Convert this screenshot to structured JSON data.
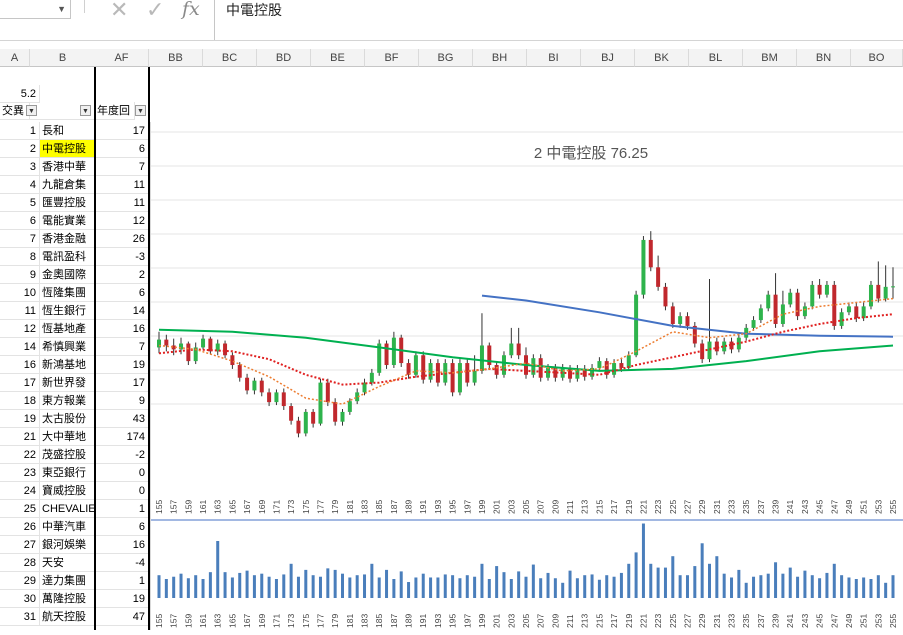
{
  "formula_bar": {
    "name_box": "",
    "formula": "中電控股",
    "fx_label": "fx"
  },
  "columns": [
    "A",
    "B",
    "AF",
    "BB",
    "BC",
    "BD",
    "BE",
    "BF",
    "BG",
    "BH",
    "BI",
    "BJ",
    "BK",
    "BL",
    "BM",
    "BN",
    "BO"
  ],
  "header_rows": {
    "a_value": "5.2",
    "a_label": "交異",
    "af_label": "年度回"
  },
  "rows": [
    {
      "n": "1",
      "name": "長和",
      "val": "17"
    },
    {
      "n": "2",
      "name": "中電控股",
      "val": "6",
      "hl": true
    },
    {
      "n": "3",
      "name": "香港中華",
      "val": "7"
    },
    {
      "n": "4",
      "name": "九龍倉集",
      "val": "11"
    },
    {
      "n": "5",
      "name": "匯豐控股",
      "val": "11"
    },
    {
      "n": "6",
      "name": "電能實業",
      "val": "12"
    },
    {
      "n": "7",
      "name": "香港金融",
      "val": "26"
    },
    {
      "n": "8",
      "name": "電訊盈科",
      "val": "-3"
    },
    {
      "n": "9",
      "name": "金奧國際",
      "val": "2"
    },
    {
      "n": "10",
      "name": "恆隆集團",
      "val": "6"
    },
    {
      "n": "11",
      "name": "恆生銀行",
      "val": "14"
    },
    {
      "n": "12",
      "name": "恆基地產",
      "val": "16"
    },
    {
      "n": "14",
      "name": "希慎興業",
      "val": "7"
    },
    {
      "n": "16",
      "name": "新鴻基地",
      "val": "19"
    },
    {
      "n": "17",
      "name": "新世界發",
      "val": "17"
    },
    {
      "n": "18",
      "name": "東方報業",
      "val": "9"
    },
    {
      "n": "19",
      "name": "太古股份",
      "val": "43"
    },
    {
      "n": "21",
      "name": "大中華地",
      "val": "174"
    },
    {
      "n": "22",
      "name": "茂盛控股",
      "val": "-2"
    },
    {
      "n": "23",
      "name": "東亞銀行",
      "val": "0"
    },
    {
      "n": "24",
      "name": "寶威控股",
      "val": "0"
    },
    {
      "n": "25",
      "name": "CHEVALIE",
      "val": "1"
    },
    {
      "n": "26",
      "name": "中華汽車",
      "val": "6"
    },
    {
      "n": "27",
      "name": "銀河娛樂",
      "val": "16"
    },
    {
      "n": "28",
      "name": "天安",
      "val": "-4"
    },
    {
      "n": "29",
      "name": "達力集團",
      "val": "1"
    },
    {
      "n": "30",
      "name": "萬隆控股",
      "val": "19"
    },
    {
      "n": "31",
      "name": "航天控股",
      "val": "47"
    }
  ],
  "chart_data": {
    "type": "candlestick",
    "title": "2 中電控股  76.25",
    "x_ticks": [
      "155",
      "157",
      "159",
      "161",
      "163",
      "165",
      "167",
      "169",
      "171",
      "173",
      "175",
      "177",
      "179",
      "181",
      "183",
      "185",
      "187",
      "189",
      "191",
      "193",
      "195",
      "197",
      "199",
      "201",
      "203",
      "205",
      "207",
      "209",
      "211",
      "213",
      "215",
      "217",
      "219",
      "221",
      "223",
      "225",
      "227",
      "229",
      "231",
      "233",
      "235",
      "237",
      "239",
      "241",
      "243",
      "245",
      "247",
      "249",
      "251",
      "253",
      "255"
    ],
    "x_range": [
      155,
      255
    ],
    "price_range": [
      55,
      90
    ],
    "volume_range": [
      0,
      100
    ],
    "colors": {
      "up": "#2eb34c",
      "down": "#c0282d",
      "ma_long": "#00b050",
      "ma_mid": "#4472c4",
      "ma_short_red": "#e02020",
      "ma_short_orange": "#ed7d31",
      "volume": "#4a7ebb"
    },
    "candles": [
      [
        155,
        70,
        70.8,
        71.6,
        69.4
      ],
      [
        156,
        70.8,
        70.2,
        71.3,
        69.6
      ],
      [
        157,
        70.2,
        69.8,
        70.9,
        69.2
      ],
      [
        158,
        69.8,
        70.4,
        71.0,
        69.3
      ],
      [
        159,
        70.4,
        68.6,
        70.6,
        68.2
      ],
      [
        160,
        68.6,
        70.0,
        70.5,
        68.3
      ],
      [
        161,
        70.0,
        70.9,
        71.3,
        69.8
      ],
      [
        162,
        70.9,
        69.6,
        71.1,
        69.3
      ],
      [
        163,
        69.6,
        70.4,
        70.8,
        69.2
      ],
      [
        164,
        70.4,
        69.2,
        70.7,
        68.9
      ],
      [
        165,
        69.2,
        68.2,
        69.5,
        67.8
      ],
      [
        166,
        68.2,
        66.9,
        68.5,
        66.5
      ],
      [
        167,
        66.9,
        65.6,
        67.3,
        65.2
      ],
      [
        168,
        65.6,
        66.6,
        66.9,
        65.2
      ],
      [
        169,
        66.6,
        65.4,
        66.9,
        65.0
      ],
      [
        170,
        65.4,
        64.4,
        65.8,
        64.0
      ],
      [
        171,
        64.4,
        65.4,
        65.7,
        64.1
      ],
      [
        172,
        65.4,
        64.0,
        65.8,
        63.6
      ],
      [
        173,
        64.0,
        62.5,
        64.3,
        62.1
      ],
      [
        174,
        62.5,
        61.2,
        62.9,
        60.8
      ],
      [
        175,
        61.2,
        63.4,
        63.7,
        60.9
      ],
      [
        176,
        63.4,
        62.2,
        63.7,
        61.8
      ],
      [
        177,
        62.2,
        66.4,
        66.8,
        62.0
      ],
      [
        178,
        66.4,
        64.4,
        66.8,
        64.0
      ],
      [
        179,
        64.4,
        62.4,
        64.8,
        62.0
      ],
      [
        180,
        62.4,
        63.4,
        63.7,
        62.0
      ],
      [
        181,
        63.4,
        64.5,
        64.8,
        63.1
      ],
      [
        182,
        64.5,
        65.4,
        65.8,
        64.2
      ],
      [
        183,
        65.4,
        66.4,
        66.8,
        65.1
      ],
      [
        184,
        66.4,
        67.4,
        67.8,
        66.1
      ],
      [
        185,
        67.4,
        70.4,
        70.8,
        67.1
      ],
      [
        186,
        70.4,
        68.2,
        70.7,
        67.8
      ],
      [
        187,
        68.2,
        71.0,
        71.6,
        67.9
      ],
      [
        188,
        71.0,
        68.4,
        71.3,
        68.0
      ],
      [
        189,
        68.4,
        67.2,
        68.8,
        66.8
      ],
      [
        190,
        67.2,
        69.2,
        69.6,
        66.9
      ],
      [
        191,
        69.2,
        66.7,
        69.6,
        66.3
      ],
      [
        192,
        66.7,
        68.4,
        68.8,
        66.4
      ],
      [
        193,
        68.4,
        66.4,
        68.8,
        66.0
      ],
      [
        194,
        66.4,
        68.4,
        68.8,
        66.1
      ],
      [
        195,
        68.4,
        65.4,
        68.8,
        65.0
      ],
      [
        196,
        65.4,
        68.4,
        68.8,
        65.1
      ],
      [
        197,
        68.4,
        66.4,
        68.8,
        66.0
      ],
      [
        198,
        66.4,
        67.6,
        69.2,
        66.1
      ],
      [
        199,
        67.6,
        70.2,
        73.5,
        67.3
      ],
      [
        200,
        70.2,
        68.2,
        70.5,
        67.8
      ],
      [
        201,
        68.2,
        67.2,
        68.6,
        66.8
      ],
      [
        202,
        67.2,
        69.2,
        69.6,
        66.9
      ],
      [
        203,
        69.2,
        70.4,
        72.0,
        68.9
      ],
      [
        204,
        70.4,
        69.2,
        72.0,
        68.8
      ],
      [
        205,
        69.2,
        67.2,
        70.0,
        66.8
      ],
      [
        206,
        67.2,
        68.9,
        69.3,
        66.9
      ],
      [
        207,
        68.9,
        66.9,
        69.3,
        66.5
      ],
      [
        208,
        66.9,
        67.9,
        68.3,
        66.6
      ],
      [
        209,
        67.9,
        66.9,
        68.3,
        66.5
      ],
      [
        210,
        66.9,
        67.9,
        68.3,
        66.6
      ],
      [
        211,
        67.9,
        66.8,
        68.2,
        66.4
      ],
      [
        212,
        66.8,
        67.8,
        68.2,
        66.5
      ],
      [
        213,
        67.8,
        67.0,
        68.2,
        66.6
      ],
      [
        214,
        67.0,
        67.9,
        68.3,
        66.7
      ],
      [
        215,
        67.9,
        68.6,
        69.0,
        67.6
      ],
      [
        216,
        68.6,
        67.2,
        68.9,
        66.8
      ],
      [
        217,
        67.2,
        68.4,
        68.8,
        66.9
      ],
      [
        218,
        68.4,
        67.9,
        68.8,
        67.5
      ],
      [
        219,
        67.9,
        69.2,
        69.6,
        67.6
      ],
      [
        220,
        69.2,
        75.4,
        75.8,
        69.0
      ],
      [
        221,
        75.4,
        81.0,
        81.4,
        75.0
      ],
      [
        222,
        81.0,
        78.2,
        81.9,
        77.8
      ],
      [
        223,
        78.2,
        76.2,
        79.4,
        75.8
      ],
      [
        224,
        76.2,
        74.2,
        76.6,
        73.8
      ],
      [
        225,
        74.2,
        72.4,
        74.6,
        72.0
      ],
      [
        226,
        72.4,
        73.2,
        73.6,
        72.0
      ],
      [
        227,
        73.2,
        72.2,
        73.6,
        71.8
      ],
      [
        228,
        72.2,
        70.4,
        72.6,
        70.0
      ],
      [
        229,
        70.4,
        68.8,
        70.8,
        68.4
      ],
      [
        230,
        68.8,
        70.6,
        77.0,
        68.5
      ],
      [
        231,
        70.6,
        69.6,
        71.0,
        69.2
      ],
      [
        232,
        69.6,
        70.6,
        71.0,
        69.3
      ],
      [
        233,
        70.6,
        69.8,
        71.0,
        69.4
      ],
      [
        234,
        69.8,
        71.0,
        71.4,
        69.5
      ],
      [
        235,
        71.0,
        72.0,
        72.4,
        70.7
      ],
      [
        236,
        72.0,
        72.8,
        73.2,
        71.7
      ],
      [
        237,
        72.8,
        74.0,
        74.4,
        72.5
      ],
      [
        238,
        74.0,
        75.4,
        75.8,
        73.7
      ],
      [
        239,
        75.4,
        72.4,
        77.6,
        72.0
      ],
      [
        240,
        72.4,
        74.4,
        75.8,
        72.1
      ],
      [
        241,
        74.4,
        75.6,
        76.0,
        74.1
      ],
      [
        242,
        75.6,
        73.2,
        76.0,
        72.8
      ],
      [
        243,
        73.2,
        74.2,
        74.6,
        72.9
      ],
      [
        244,
        74.2,
        76.4,
        76.8,
        73.9
      ],
      [
        245,
        76.4,
        75.4,
        77.0,
        75.0
      ],
      [
        246,
        75.4,
        76.4,
        76.8,
        75.1
      ],
      [
        247,
        76.4,
        72.2,
        76.8,
        71.8
      ],
      [
        248,
        72.2,
        73.6,
        74.0,
        71.9
      ],
      [
        249,
        73.6,
        74.2,
        74.6,
        73.3
      ],
      [
        250,
        74.2,
        73.0,
        74.6,
        72.6
      ],
      [
        251,
        73.0,
        74.2,
        74.6,
        72.7
      ],
      [
        252,
        74.2,
        76.4,
        76.8,
        73.9
      ],
      [
        253,
        76.4,
        75.0,
        78.8,
        74.6
      ],
      [
        254,
        75.0,
        76.2,
        78.4,
        74.7
      ],
      [
        255,
        76.2,
        76.25,
        78.2,
        75.0
      ]
    ],
    "ma_long_green": [
      [
        155,
        71.8
      ],
      [
        165,
        71.6
      ],
      [
        175,
        71.0
      ],
      [
        185,
        70.0
      ],
      [
        195,
        69.0
      ],
      [
        205,
        68.2
      ],
      [
        215,
        67.6
      ],
      [
        225,
        67.8
      ],
      [
        235,
        68.6
      ],
      [
        245,
        69.6
      ],
      [
        255,
        70.2
      ]
    ],
    "ma_mid_blue": [
      [
        199,
        75.3
      ],
      [
        205,
        74.8
      ],
      [
        215,
        73.6
      ],
      [
        225,
        72.2
      ],
      [
        235,
        71.4
      ],
      [
        245,
        71.2
      ],
      [
        255,
        71.1
      ]
    ],
    "ma_short_red": [
      [
        155,
        69.4
      ],
      [
        160,
        69.8
      ],
      [
        165,
        69.6
      ],
      [
        170,
        68.8
      ],
      [
        175,
        67.2
      ],
      [
        180,
        66.2
      ],
      [
        185,
        66.4
      ],
      [
        190,
        67.0
      ],
      [
        195,
        67.4
      ],
      [
        200,
        67.8
      ],
      [
        205,
        67.6
      ],
      [
        210,
        67.4
      ],
      [
        215,
        67.2
      ],
      [
        220,
        68.2
      ],
      [
        225,
        69.0
      ],
      [
        230,
        69.8
      ],
      [
        235,
        70.6
      ],
      [
        240,
        71.6
      ],
      [
        245,
        72.4
      ],
      [
        250,
        73.0
      ],
      [
        255,
        73.4
      ]
    ],
    "ma_short_orange": [
      [
        155,
        70.2
      ],
      [
        160,
        69.8
      ],
      [
        165,
        68.6
      ],
      [
        170,
        67.0
      ],
      [
        175,
        64.8
      ],
      [
        180,
        64.2
      ],
      [
        185,
        66.0
      ],
      [
        190,
        67.6
      ],
      [
        195,
        67.4
      ],
      [
        200,
        67.8
      ],
      [
        205,
        68.4
      ],
      [
        210,
        67.6
      ],
      [
        215,
        67.8
      ],
      [
        220,
        69.6
      ],
      [
        225,
        71.6
      ],
      [
        230,
        71.0
      ],
      [
        235,
        71.4
      ],
      [
        240,
        73.4
      ],
      [
        245,
        74.2
      ],
      [
        250,
        74.6
      ],
      [
        255,
        75.0
      ]
    ],
    "volume": [
      [
        155,
        30
      ],
      [
        156,
        25
      ],
      [
        157,
        28
      ],
      [
        158,
        32
      ],
      [
        159,
        26
      ],
      [
        160,
        30
      ],
      [
        161,
        25
      ],
      [
        162,
        34
      ],
      [
        163,
        75
      ],
      [
        164,
        34
      ],
      [
        165,
        27
      ],
      [
        166,
        33
      ],
      [
        167,
        36
      ],
      [
        168,
        30
      ],
      [
        169,
        32
      ],
      [
        170,
        28
      ],
      [
        171,
        25
      ],
      [
        172,
        31
      ],
      [
        173,
        45
      ],
      [
        174,
        28
      ],
      [
        175,
        37
      ],
      [
        176,
        30
      ],
      [
        177,
        28
      ],
      [
        178,
        39
      ],
      [
        179,
        37
      ],
      [
        180,
        32
      ],
      [
        181,
        27
      ],
      [
        182,
        30
      ],
      [
        183,
        31
      ],
      [
        184,
        45
      ],
      [
        185,
        27
      ],
      [
        186,
        37
      ],
      [
        187,
        25
      ],
      [
        188,
        35
      ],
      [
        189,
        21
      ],
      [
        190,
        27
      ],
      [
        191,
        32
      ],
      [
        192,
        27
      ],
      [
        193,
        27
      ],
      [
        194,
        31
      ],
      [
        195,
        30
      ],
      [
        196,
        26
      ],
      [
        197,
        30
      ],
      [
        198,
        28
      ],
      [
        199,
        45
      ],
      [
        200,
        25
      ],
      [
        201,
        42
      ],
      [
        202,
        34
      ],
      [
        203,
        25
      ],
      [
        204,
        35
      ],
      [
        205,
        28
      ],
      [
        206,
        44
      ],
      [
        207,
        26
      ],
      [
        208,
        33
      ],
      [
        209,
        26
      ],
      [
        210,
        20
      ],
      [
        211,
        36
      ],
      [
        212,
        26
      ],
      [
        213,
        30
      ],
      [
        214,
        31
      ],
      [
        215,
        24
      ],
      [
        216,
        30
      ],
      [
        217,
        28
      ],
      [
        218,
        33
      ],
      [
        219,
        45
      ],
      [
        220,
        60
      ],
      [
        221,
        98
      ],
      [
        222,
        45
      ],
      [
        223,
        40
      ],
      [
        224,
        40
      ],
      [
        225,
        55
      ],
      [
        226,
        30
      ],
      [
        227,
        30
      ],
      [
        228,
        42
      ],
      [
        229,
        72
      ],
      [
        230,
        45
      ],
      [
        231,
        55
      ],
      [
        232,
        32
      ],
      [
        233,
        27
      ],
      [
        234,
        37
      ],
      [
        235,
        20
      ],
      [
        236,
        28
      ],
      [
        237,
        30
      ],
      [
        238,
        32
      ],
      [
        239,
        47
      ],
      [
        240,
        32
      ],
      [
        241,
        40
      ],
      [
        242,
        28
      ],
      [
        243,
        36
      ],
      [
        244,
        30
      ],
      [
        245,
        26
      ],
      [
        246,
        33
      ],
      [
        247,
        45
      ],
      [
        248,
        30
      ],
      [
        249,
        27
      ],
      [
        250,
        25
      ],
      [
        251,
        27
      ],
      [
        252,
        25
      ],
      [
        253,
        30
      ],
      [
        254,
        20
      ],
      [
        255,
        30
      ]
    ]
  }
}
